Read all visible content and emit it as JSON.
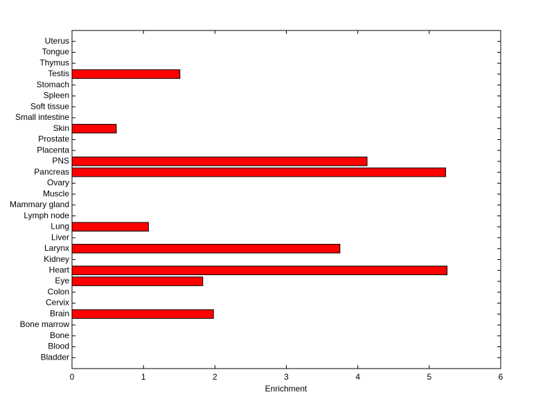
{
  "chart_data": {
    "type": "barh",
    "categories": [
      "Bladder",
      "Blood",
      "Bone",
      "Bone marrow",
      "Brain",
      "Cervix",
      "Colon",
      "Eye",
      "Heart",
      "Kidney",
      "Larynx",
      "Liver",
      "Lung",
      "Lymph node",
      "Mammary gland",
      "Muscle",
      "Ovary",
      "Pancreas",
      "PNS",
      "Placenta",
      "Prostate",
      "Skin",
      "Small intestine",
      "Soft tissue",
      "Spleen",
      "Stomach",
      "Testis",
      "Thymus",
      "Tongue",
      "Uterus"
    ],
    "values": [
      0,
      0,
      0,
      0,
      1.98,
      0,
      0,
      1.83,
      5.25,
      0,
      3.75,
      0,
      1.07,
      0,
      0,
      0,
      0,
      5.23,
      4.13,
      0,
      0,
      0.62,
      0,
      0,
      0,
      0,
      1.51,
      0,
      0,
      0
    ],
    "color": "#ff0000",
    "xlabel": "Enrichment",
    "xlim": [
      0,
      6
    ],
    "xticks": [
      0,
      1,
      2,
      3,
      4,
      5,
      6
    ]
  }
}
